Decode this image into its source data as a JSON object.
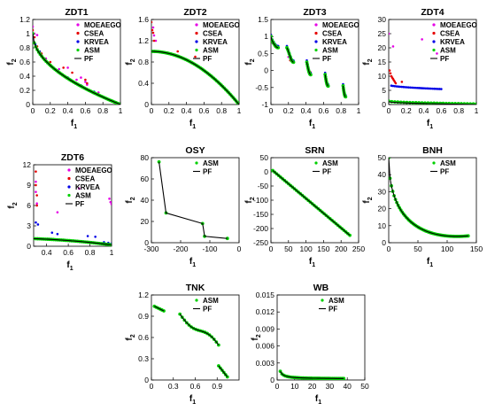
{
  "chart_data": [
    {
      "type": "scatter",
      "title": "ZDT1",
      "xlabel": "f",
      "xlabel_sub": "1",
      "ylabel": "f",
      "ylabel_sub": "2",
      "xlim": [
        0,
        1
      ],
      "ylim": [
        0,
        1.2
      ],
      "xticks": [
        0,
        0.2,
        0.4,
        0.6,
        0.8,
        1
      ],
      "xtick_labels": [
        "0",
        "0.2",
        "0.4",
        "0.6",
        "0.8",
        "1"
      ],
      "yticks": [
        0,
        0.2,
        0.4,
        0.6,
        0.8,
        1,
        1.2
      ],
      "ytick_labels": [
        "0",
        "0.2",
        "0.4",
        "0.6",
        "0.8",
        "1",
        "1.2"
      ],
      "legend": "top-right",
      "series": [
        {
          "name": "MOEAEGO",
          "marker": "point",
          "color": "#e600e6",
          "x": [
            0.0,
            0.02,
            0.05,
            0.08,
            0.1,
            0.15,
            0.3,
            0.4,
            0.5,
            0.55,
            0.6,
            0.62,
            0.75
          ],
          "y": [
            1.1,
            1.0,
            0.98,
            0.74,
            0.7,
            0.65,
            0.5,
            0.52,
            0.35,
            0.38,
            0.32,
            0.28,
            0.17
          ]
        },
        {
          "name": "CSEA",
          "marker": "point",
          "color": "#e60000",
          "x": [
            0.0,
            0.02,
            0.05,
            0.1,
            0.2,
            0.35,
            0.45,
            0.6,
            0.62
          ],
          "y": [
            1.05,
            0.95,
            0.82,
            0.72,
            0.6,
            0.52,
            0.45,
            0.35,
            0.3
          ]
        },
        {
          "name": "KRVEA",
          "marker": "point",
          "color": "#0000e6",
          "x": [
            0.0,
            0.03,
            0.08,
            0.15,
            0.25,
            0.4,
            0.55,
            0.7,
            0.85,
            1.0
          ],
          "y": [
            0.95,
            0.85,
            0.75,
            0.62,
            0.5,
            0.38,
            0.27,
            0.18,
            0.08,
            0.0
          ]
        },
        {
          "name": "ASM",
          "marker": "dot",
          "color": "#00d000",
          "curve": "zdt1"
        },
        {
          "name": "PF",
          "marker": "line",
          "color": "#000000",
          "curve": "zdt1"
        }
      ]
    },
    {
      "type": "scatter",
      "title": "ZDT2",
      "xlabel": "f",
      "xlabel_sub": "1",
      "ylabel": "f",
      "ylabel_sub": "2",
      "xlim": [
        0,
        1
      ],
      "ylim": [
        0,
        1.6
      ],
      "xticks": [
        0,
        0.2,
        0.4,
        0.6,
        0.8,
        1
      ],
      "xtick_labels": [
        "0",
        "0.2",
        "0.4",
        "0.6",
        "0.8",
        "1"
      ],
      "yticks": [
        0,
        0.4,
        0.8,
        1.2,
        1.6
      ],
      "ytick_labels": [
        "0",
        "0.4",
        "0.8",
        "1.2",
        "1.6"
      ],
      "legend": "top-right",
      "series": [
        {
          "name": "MOEAEGO",
          "marker": "point",
          "color": "#e600e6",
          "x": [
            0.02,
            0.03,
            0.05
          ],
          "y": [
            1.45,
            1.3,
            1.2
          ]
        },
        {
          "name": "CSEA",
          "marker": "point",
          "color": "#e60000",
          "x": [
            0.0,
            0.01,
            0.02,
            0.03,
            0.3,
            0.5
          ],
          "y": [
            1.55,
            1.4,
            1.35,
            1.2,
            1.0,
            0.9
          ]
        },
        {
          "name": "KRVEA",
          "marker": "point",
          "color": "#0000e6",
          "x": [
            0.0,
            0.2,
            0.4,
            0.6
          ],
          "y": [
            1.0,
            0.96,
            0.85,
            0.64
          ]
        },
        {
          "name": "ASM",
          "marker": "dot",
          "color": "#00d000",
          "curve": "zdt2"
        },
        {
          "name": "PF",
          "marker": "line",
          "color": "#000000",
          "curve": "zdt2"
        }
      ]
    },
    {
      "type": "scatter",
      "title": "ZDT3",
      "xlabel": "f",
      "xlabel_sub": "1",
      "ylabel": "f",
      "ylabel_sub": "2",
      "xlim": [
        0,
        1
      ],
      "ylim": [
        -1,
        1.5
      ],
      "xticks": [
        0,
        0.2,
        0.4,
        0.6,
        0.8,
        1
      ],
      "xtick_labels": [
        "0",
        "0.2",
        "0.4",
        "0.6",
        "0.8",
        "1"
      ],
      "yticks": [
        -1,
        -0.5,
        0,
        0.5,
        1,
        1.5
      ],
      "ytick_labels": [
        "-1",
        "-0.5",
        "0",
        "0.5",
        "1",
        "1.5"
      ],
      "legend": "top-right",
      "series": [
        {
          "name": "MOEAEGO",
          "marker": "point",
          "color": "#e600e6",
          "x": [
            0.0,
            0.02,
            0.2,
            0.42,
            0.62
          ],
          "y": [
            1.0,
            0.8,
            0.4,
            0.1,
            -0.2
          ]
        },
        {
          "name": "CSEA",
          "marker": "point",
          "color": "#e60000",
          "x": [
            0.0,
            0.05,
            0.22,
            0.45
          ],
          "y": [
            1.05,
            0.7,
            0.3,
            -0.05
          ]
        },
        {
          "name": "KRVEA",
          "marker": "point",
          "color": "#0000e6",
          "curve": "zdt3k"
        },
        {
          "name": "ASM",
          "marker": "dot",
          "color": "#00d000",
          "curve": "zdt3"
        },
        {
          "name": "PF",
          "marker": "line",
          "color": "#000000",
          "curve": "zdt3"
        }
      ]
    },
    {
      "type": "scatter",
      "title": "ZDT4",
      "xlabel": "f",
      "xlabel_sub": "1",
      "ylabel": "f",
      "ylabel_sub": "2",
      "xlim": [
        0,
        1
      ],
      "ylim": [
        0,
        30
      ],
      "xticks": [
        0,
        0.2,
        0.4,
        0.6,
        0.8,
        1
      ],
      "xtick_labels": [
        "0",
        "0.2",
        "0.4",
        "0.6",
        "0.8",
        "1"
      ],
      "yticks": [
        0,
        5,
        10,
        15,
        20,
        25,
        30
      ],
      "ytick_labels": [
        "0",
        "5",
        "10",
        "15",
        "20",
        "25",
        "30"
      ],
      "legend": "top-right",
      "series": [
        {
          "name": "MOEAEGO",
          "marker": "point",
          "color": "#e600e6",
          "x": [
            0.0,
            0.05,
            0.38,
            0.55
          ],
          "y": [
            25.0,
            20.5,
            23.0,
            18.0
          ]
        },
        {
          "name": "CSEA",
          "marker": "point",
          "color": "#e60000",
          "x": [
            0.01,
            0.02,
            0.03,
            0.04,
            0.05,
            0.06,
            0.07,
            0.08,
            0.15
          ],
          "y": [
            12.0,
            11.0,
            10.0,
            9.5,
            9.0,
            8.5,
            8.0,
            7.5,
            8.0
          ]
        },
        {
          "name": "KRVEA",
          "marker": "point",
          "color": "#0000e6",
          "curve": "zdt4k"
        },
        {
          "name": "ASM",
          "marker": "dot",
          "color": "#00d000",
          "curve": "zdt4a"
        },
        {
          "name": "PF",
          "marker": "line",
          "color": "#000000",
          "curve": "zdt4pf"
        }
      ]
    },
    {
      "type": "scatter",
      "title": "ZDT6",
      "xlabel": "f",
      "xlabel_sub": "1",
      "ylabel": "f",
      "ylabel_sub": "2",
      "xlim": [
        0.28,
        1
      ],
      "ylim": [
        0,
        12
      ],
      "xticks": [
        0.4,
        0.6,
        0.8,
        1
      ],
      "xtick_labels": [
        "0.4",
        "0.6",
        "0.8",
        "1"
      ],
      "yticks": [
        0,
        3,
        6,
        9,
        12
      ],
      "ytick_labels": [
        "0",
        "3",
        "6",
        "9",
        "12"
      ],
      "legend": "top-right",
      "series": [
        {
          "name": "MOEAEGO",
          "marker": "point",
          "color": "#e600e6",
          "x": [
            0.3,
            0.3,
            0.31,
            0.5,
            0.7,
            0.98,
            0.99,
            1.0
          ],
          "y": [
            9.5,
            8.0,
            6.3,
            5.0,
            8.5,
            7.0,
            6.5,
            6.2
          ]
        },
        {
          "name": "CSEA",
          "marker": "point",
          "color": "#e60000",
          "x": [
            0.3,
            0.3,
            0.31,
            0.31
          ],
          "y": [
            11.0,
            9.0,
            7.5,
            6.0
          ]
        },
        {
          "name": "KRVEA",
          "marker": "point",
          "color": "#0000e6",
          "x": [
            0.3,
            0.32,
            0.45,
            0.5,
            0.78,
            0.85,
            0.93,
            0.97,
            1.0
          ],
          "y": [
            3.5,
            3.2,
            2.0,
            1.8,
            1.5,
            1.4,
            0.6,
            0.5,
            0.4
          ]
        },
        {
          "name": "ASM",
          "marker": "dot",
          "color": "#00d000",
          "curve": "zdt6"
        },
        {
          "name": "PF",
          "marker": "line",
          "color": "#000000",
          "curve": "zdt6"
        }
      ]
    },
    {
      "type": "scatter",
      "title": "OSY",
      "xlabel": "f",
      "xlabel_sub": "1",
      "ylabel": "f",
      "ylabel_sub": "2",
      "xlim": [
        -300,
        0
      ],
      "ylim": [
        0,
        80
      ],
      "xticks": [
        -300,
        -200,
        -100,
        0
      ],
      "xtick_labels": [
        "-300",
        "-200",
        "-100",
        "0"
      ],
      "yticks": [
        0,
        20,
        40,
        60,
        80
      ],
      "ytick_labels": [
        "0",
        "20",
        "40",
        "60",
        "80"
      ],
      "legend": "top-right",
      "series": [
        {
          "name": "ASM",
          "marker": "dot",
          "color": "#00d000",
          "curve": "osy"
        },
        {
          "name": "PF",
          "marker": "line",
          "color": "#000000",
          "curve": "osy"
        }
      ]
    },
    {
      "type": "scatter",
      "title": "SRN",
      "xlabel": "f",
      "xlabel_sub": "1",
      "ylabel": "f",
      "ylabel_sub": "2",
      "xlim": [
        0,
        250
      ],
      "ylim": [
        -250,
        50
      ],
      "xticks": [
        0,
        50,
        100,
        150,
        200,
        250
      ],
      "xtick_labels": [
        "0",
        "50",
        "100",
        "150",
        "200",
        "250"
      ],
      "yticks": [
        -250,
        -200,
        -150,
        -100,
        -50,
        0,
        50
      ],
      "ytick_labels": [
        "-250",
        "-200",
        "-150",
        "-100",
        "-50",
        "0",
        "50"
      ],
      "legend": "top-right",
      "series": [
        {
          "name": "ASM",
          "marker": "dot",
          "color": "#00d000",
          "curve": "srn"
        },
        {
          "name": "PF",
          "marker": "line",
          "color": "#000000",
          "curve": "srn"
        }
      ]
    },
    {
      "type": "scatter",
      "title": "BNH",
      "xlabel": "f",
      "xlabel_sub": "1",
      "ylabel": "f",
      "ylabel_sub": "2",
      "xlim": [
        0,
        150
      ],
      "ylim": [
        0,
        50
      ],
      "xticks": [
        0,
        50,
        100,
        150
      ],
      "xtick_labels": [
        "0",
        "50",
        "100",
        "150"
      ],
      "yticks": [
        0,
        10,
        20,
        30,
        40,
        50
      ],
      "ytick_labels": [
        "0",
        "10",
        "20",
        "30",
        "40",
        "50"
      ],
      "legend": "top-right",
      "series": [
        {
          "name": "ASM",
          "marker": "dot",
          "color": "#00d000",
          "curve": "bnh"
        },
        {
          "name": "PF",
          "marker": "line",
          "color": "#000000",
          "curve": "bnh"
        }
      ]
    },
    {
      "type": "scatter",
      "title": "TNK",
      "xlabel": "f",
      "xlabel_sub": "1",
      "ylabel": "f",
      "ylabel_sub": "2",
      "xlim": [
        0,
        1.2
      ],
      "ylim": [
        0,
        1.2
      ],
      "xticks": [
        0,
        0.3,
        0.6,
        0.9
      ],
      "xtick_labels": [
        "0",
        "0.3",
        "0.6",
        "0.9"
      ],
      "yticks": [
        0,
        0.3,
        0.6,
        0.9,
        1.2
      ],
      "ytick_labels": [
        "0",
        "0.3",
        "0.6",
        "0.9",
        "1.2"
      ],
      "legend": "top-right",
      "series": [
        {
          "name": "ASM",
          "marker": "dot",
          "color": "#00d000",
          "curve": "tnk"
        },
        {
          "name": "PF",
          "marker": "line",
          "color": "#000000",
          "curve": "tnk"
        }
      ]
    },
    {
      "type": "scatter",
      "title": "WB",
      "xlabel": "f",
      "xlabel_sub": "1",
      "ylabel": "f",
      "ylabel_sub": "2",
      "xlim": [
        0,
        50
      ],
      "ylim": [
        0,
        0.015
      ],
      "xticks": [
        0,
        10,
        20,
        30,
        40,
        50
      ],
      "xtick_labels": [
        "0",
        "10",
        "20",
        "30",
        "40",
        "50"
      ],
      "yticks": [
        0,
        0.003,
        0.006,
        0.009,
        0.012,
        0.015
      ],
      "ytick_labels": [
        "0",
        "0.003",
        "0.006",
        "0.009",
        "0.012",
        "0.015"
      ],
      "legend": "top-right",
      "series": [
        {
          "name": "ASM",
          "marker": "dot",
          "color": "#00d000",
          "curve": "wb"
        },
        {
          "name": "PF",
          "marker": "line",
          "color": "#000000",
          "curve": "wb"
        }
      ]
    }
  ]
}
